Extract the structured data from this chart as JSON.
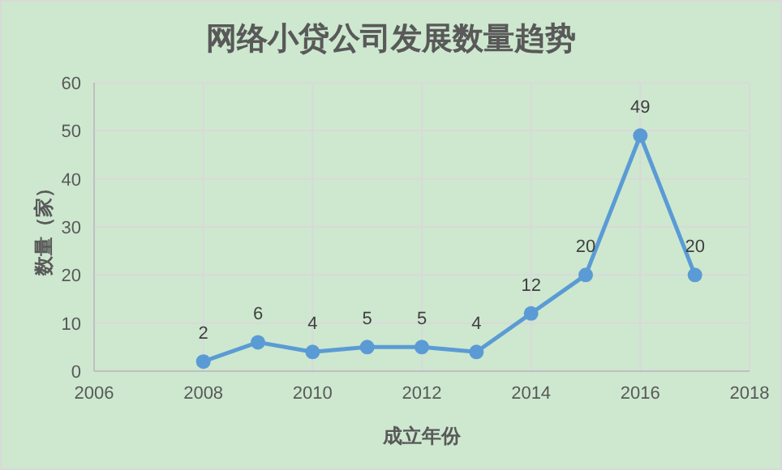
{
  "chart_data": {
    "type": "line",
    "title": "网络小贷公司发展数量趋势",
    "xlabel": "成立年份",
    "ylabel": "数量（家）",
    "x": [
      2008,
      2009,
      2010,
      2011,
      2012,
      2013,
      2014,
      2015,
      2016,
      2017
    ],
    "series": [
      {
        "color": "#5b9bd5",
        "values": [
          2,
          6,
          4,
          5,
          5,
          4,
          12,
          20,
          49,
          20
        ]
      }
    ],
    "xlim": [
      2006,
      2018
    ],
    "xticks": [
      2006,
      2008,
      2010,
      2012,
      2014,
      2016,
      2018
    ],
    "ylim": [
      0,
      60
    ],
    "yticks": [
      0,
      10,
      20,
      30,
      40,
      50,
      60
    ],
    "grid": true,
    "marker": "circle",
    "line_style": "solid",
    "data_labels": true
  }
}
